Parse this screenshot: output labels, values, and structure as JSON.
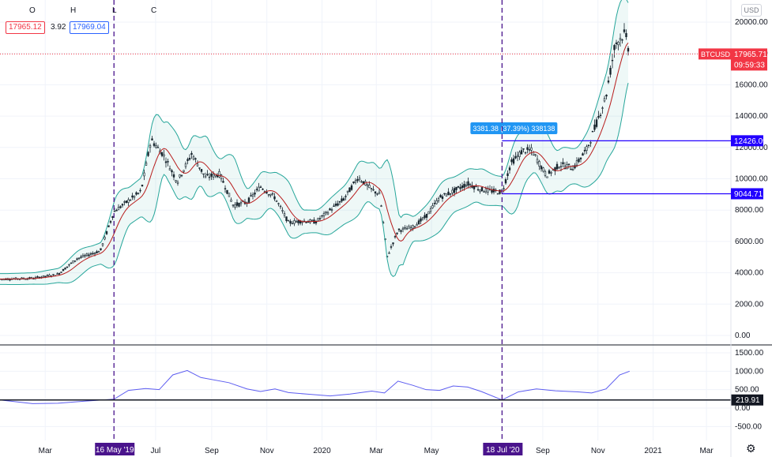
{
  "legend": {
    "o_label": "O",
    "h_label": "H",
    "l_label": "L",
    "c_label": "C",
    "price_box_1": "17965.12",
    "change_value": "3.92",
    "price_box_2": "17969.04"
  },
  "currency_button": "USD",
  "symbol_tag": "BTCUSD",
  "symbol_price": "17965.71",
  "countdown": "09:59:33",
  "measure_label": "3381.38 (37.39%) 338138",
  "colors": {
    "up": "#131722",
    "down": "#131722",
    "band": "#26a69a",
    "basis": "#b71c1c",
    "indicator": "#5c5cf0",
    "hline": "#2200ff",
    "vline": "#4a148c",
    "last_price": "#f23645"
  },
  "chart_data": [
    {
      "type": "line",
      "panel": "price",
      "symbol": "BTCUSD",
      "ylim": [
        -200,
        20500
      ],
      "y_ticks": [
        "20000.00",
        "18000.00",
        "16000.00",
        "14000.00",
        "12000.00",
        "10000.00",
        "8000.00",
        "6000.00",
        "4000.00",
        "2000.00",
        "0.00"
      ],
      "x_ticks": [
        "Mar",
        "16 May '19",
        "Jul",
        "Sep",
        "Nov",
        "2020",
        "Mar",
        "May",
        "18 Jul '20",
        "Sep",
        "Nov",
        "2021",
        "Mar"
      ],
      "x_range": [
        "2019-01-10",
        "2021-03-28"
      ],
      "candles": [
        {
          "date": "2019-01-15",
          "close": 3600
        },
        {
          "date": "2019-02-15",
          "close": 3650
        },
        {
          "date": "2019-03-15",
          "close": 3900
        },
        {
          "date": "2019-04-05",
          "close": 4900
        },
        {
          "date": "2019-05-01",
          "close": 5400
        },
        {
          "date": "2019-05-16",
          "close": 7900
        },
        {
          "date": "2019-06-01",
          "close": 8600
        },
        {
          "date": "2019-06-15",
          "close": 9200
        },
        {
          "date": "2019-06-26",
          "close": 12500
        },
        {
          "date": "2019-07-10",
          "close": 11500
        },
        {
          "date": "2019-07-25",
          "close": 9800
        },
        {
          "date": "2019-08-10",
          "close": 11600
        },
        {
          "date": "2019-08-25",
          "close": 10100
        },
        {
          "date": "2019-09-10",
          "close": 10300
        },
        {
          "date": "2019-09-25",
          "close": 8300
        },
        {
          "date": "2019-10-10",
          "close": 8500
        },
        {
          "date": "2019-10-25",
          "close": 9500
        },
        {
          "date": "2019-11-10",
          "close": 8800
        },
        {
          "date": "2019-11-25",
          "close": 7200
        },
        {
          "date": "2019-12-10",
          "close": 7300
        },
        {
          "date": "2019-12-25",
          "close": 7250
        },
        {
          "date": "2020-01-10",
          "close": 8000
        },
        {
          "date": "2020-01-25",
          "close": 8700
        },
        {
          "date": "2020-02-10",
          "close": 10100
        },
        {
          "date": "2020-02-25",
          "close": 9300
        },
        {
          "date": "2020-03-05",
          "close": 9000
        },
        {
          "date": "2020-03-13",
          "close": 5000
        },
        {
          "date": "2020-03-25",
          "close": 6700
        },
        {
          "date": "2020-04-10",
          "close": 6900
        },
        {
          "date": "2020-04-25",
          "close": 7600
        },
        {
          "date": "2020-05-10",
          "close": 8800
        },
        {
          "date": "2020-05-25",
          "close": 9200
        },
        {
          "date": "2020-06-10",
          "close": 9700
        },
        {
          "date": "2020-06-25",
          "close": 9300
        },
        {
          "date": "2020-07-10",
          "close": 9200
        },
        {
          "date": "2020-07-18",
          "close": 9150
        },
        {
          "date": "2020-07-28",
          "close": 11000
        },
        {
          "date": "2020-08-10",
          "close": 11800
        },
        {
          "date": "2020-08-20",
          "close": 11800
        },
        {
          "date": "2020-09-05",
          "close": 10200
        },
        {
          "date": "2020-09-20",
          "close": 10900
        },
        {
          "date": "2020-10-05",
          "close": 10700
        },
        {
          "date": "2020-10-20",
          "close": 11900
        },
        {
          "date": "2020-11-01",
          "close": 13800
        },
        {
          "date": "2020-11-10",
          "close": 15300
        },
        {
          "date": "2020-11-20",
          "close": 18600
        },
        {
          "date": "2020-12-01",
          "close": 19300
        },
        {
          "date": "2020-12-06",
          "close": 17966
        }
      ],
      "horizontal_levels": [
        12426.09,
        9044.71
      ],
      "horizontal_level_labels": [
        "12426.09",
        "9044.71"
      ],
      "last_price": 17965.71,
      "vertical_markers": [
        {
          "date": "2019-05-16",
          "label": "16 May '19"
        },
        {
          "date": "2020-07-18",
          "label": "18 Jul '20"
        }
      ]
    },
    {
      "type": "line",
      "panel": "indicator",
      "ylim": [
        -650,
        1600
      ],
      "y_ticks": [
        "1500.00",
        "1000.00",
        "500.00",
        "0.00",
        "-500.00"
      ],
      "level": 219.91,
      "level_label": "219.91",
      "series": [
        {
          "values": [
            {
              "date": "2019-01-10",
              "y": 220
            },
            {
              "date": "2019-02-15",
              "y": 120
            },
            {
              "date": "2019-03-15",
              "y": 130
            },
            {
              "date": "2019-04-15",
              "y": 190
            },
            {
              "date": "2019-05-16",
              "y": 240
            },
            {
              "date": "2019-06-01",
              "y": 480
            },
            {
              "date": "2019-06-20",
              "y": 530
            },
            {
              "date": "2019-07-05",
              "y": 500
            },
            {
              "date": "2019-07-20",
              "y": 900
            },
            {
              "date": "2019-08-05",
              "y": 1020
            },
            {
              "date": "2019-08-20",
              "y": 830
            },
            {
              "date": "2019-09-20",
              "y": 690
            },
            {
              "date": "2019-10-10",
              "y": 520
            },
            {
              "date": "2019-10-25",
              "y": 450
            },
            {
              "date": "2019-11-10",
              "y": 520
            },
            {
              "date": "2019-11-25",
              "y": 420
            },
            {
              "date": "2019-12-15",
              "y": 380
            },
            {
              "date": "2020-01-10",
              "y": 330
            },
            {
              "date": "2020-02-01",
              "y": 380
            },
            {
              "date": "2020-02-25",
              "y": 460
            },
            {
              "date": "2020-03-10",
              "y": 410
            },
            {
              "date": "2020-03-25",
              "y": 730
            },
            {
              "date": "2020-04-10",
              "y": 620
            },
            {
              "date": "2020-04-25",
              "y": 500
            },
            {
              "date": "2020-05-10",
              "y": 480
            },
            {
              "date": "2020-05-25",
              "y": 600
            },
            {
              "date": "2020-06-10",
              "y": 570
            },
            {
              "date": "2020-06-25",
              "y": 450
            },
            {
              "date": "2020-07-18",
              "y": 220
            },
            {
              "date": "2020-08-05",
              "y": 440
            },
            {
              "date": "2020-08-25",
              "y": 520
            },
            {
              "date": "2020-09-15",
              "y": 470
            },
            {
              "date": "2020-10-10",
              "y": 440
            },
            {
              "date": "2020-10-25",
              "y": 410
            },
            {
              "date": "2020-11-10",
              "y": 520
            },
            {
              "date": "2020-11-25",
              "y": 900
            },
            {
              "date": "2020-12-06",
              "y": 1000
            }
          ]
        }
      ]
    }
  ]
}
